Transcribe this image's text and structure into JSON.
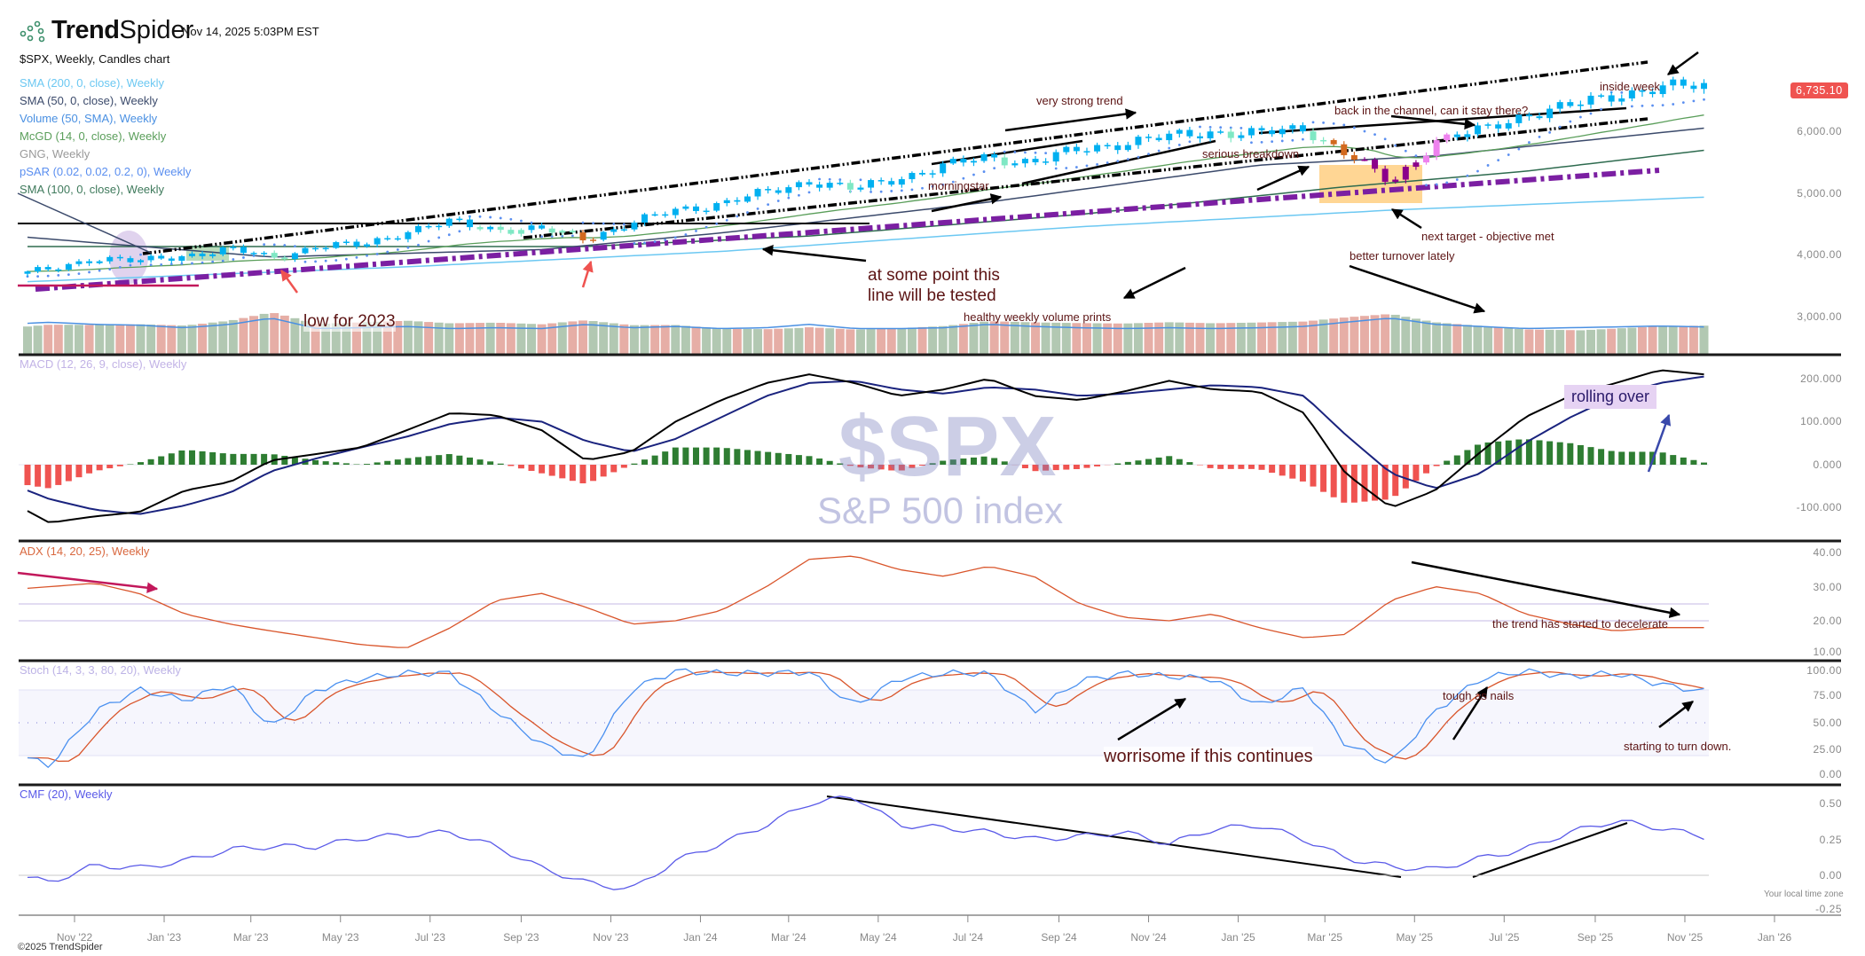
{
  "header": {
    "brand_bold": "Trend",
    "brand_light": "Spider",
    "timestamp": "Nov 14, 2025 5:03PM EST",
    "subtitle": "$SPX, Weekly, Candles chart"
  },
  "legend": [
    {
      "label": "SMA (200, 0, close), Weekly",
      "color": "#6cc8f2"
    },
    {
      "label": "SMA (50, 0, close), Weekly",
      "color": "#3b4a6b"
    },
    {
      "label": "Volume (50, SMA), Weekly",
      "color": "#4a90e2"
    },
    {
      "label": "McGD (14, 0, close), Weekly",
      "color": "#5a9e5a"
    },
    {
      "label": "GNG, Weekly",
      "color": "#9a9a9a"
    },
    {
      "label": "pSAR (0.02, 0.02, 0.2, 0), Weekly",
      "color": "#5b8ff0"
    },
    {
      "label": "SMA (100, 0, close), Weekly",
      "color": "#3f7a5c"
    }
  ],
  "panels": {
    "macd_label": "MACD (12, 26, 9, close), Weekly",
    "adx_label": "ADX (14, 20, 25), Weekly",
    "stoch_label": "Stoch (14, 3, 3, 80, 20), Weekly",
    "cmf_label": "CMF (20), Weekly"
  },
  "watermark": {
    "symbol": "$SPX",
    "name": "S&P 500 index"
  },
  "last_price": "6,735.10",
  "axes": {
    "price": [
      "6,000.00",
      "5,000.00",
      "4,000.00",
      "3,000.00"
    ],
    "macd": [
      "200.000",
      "100.000",
      "0.000",
      "-100.000"
    ],
    "adx": [
      "40.00",
      "30.00",
      "20.00",
      "10.00"
    ],
    "stoch": [
      "100.00",
      "75.00",
      "50.00",
      "25.00",
      "0.00"
    ],
    "cmf": [
      "0.50",
      "0.25",
      "0.00",
      "-0.25"
    ],
    "time": [
      "Nov '22",
      "Jan '23",
      "Mar '23",
      "May '23",
      "Jul '23",
      "Sep '23",
      "Nov '23",
      "Jan '24",
      "Mar '24",
      "May '24",
      "Jul '24",
      "Sep '24",
      "Nov '24",
      "Jan '25",
      "Mar '25",
      "May '25",
      "Jul '25",
      "Sep '25",
      "Nov '25",
      "Jan '26"
    ],
    "timezone_note": "Your local time zone"
  },
  "annotations": {
    "very_strong_trend": "very strong trend",
    "inside_week": "inside week",
    "back_in_channel": "back in the channel, can it stay there?",
    "serious_breakdown": "serious breakdown",
    "morningstar": "morningstar",
    "next_target": "next target - objective met",
    "better_turnover": "better turnover lately",
    "healthy_volume": "healthy weekly volume prints",
    "line_tested_1": "at some point this",
    "line_tested_2": "line will be tested",
    "low_2023": "low for 2023",
    "rolling_over": "rolling over",
    "trend_decelerate": "the trend has started to decelerate",
    "worrisome": "worrisome if this continues",
    "tough_as_nails": "tough as nails",
    "turn_down": "starting to turn down."
  },
  "footer": {
    "copyright": "©2025 TrendSpider"
  },
  "colors": {
    "up_strong": "#00b0f0",
    "up_weak": "#7fe8c4",
    "caution": "#d2691e",
    "down_weak": "#ee82ee",
    "down_strong": "#8b008b",
    "vol_up": "#b2c8b2",
    "vol_down": "#e6aea6",
    "hist_pos": "#2e7d32",
    "hist_neg": "#ef5350",
    "macd": "#000000",
    "signal": "#1a237e",
    "adx": "#d9552b",
    "stoch_k": "#4a90f0",
    "stoch_d": "#d9552b",
    "cmf": "#5a5ae8"
  },
  "chart_data": {
    "type": "line",
    "title": "$SPX, Weekly, Candles chart",
    "months": [
      "2022-09",
      "2022-10",
      "2022-11",
      "2022-12",
      "2023-01",
      "2023-02",
      "2023-03",
      "2023-04",
      "2023-05",
      "2023-06",
      "2023-07",
      "2023-08",
      "2023-09",
      "2023-10",
      "2023-11",
      "2023-12",
      "2024-01",
      "2024-02",
      "2024-03",
      "2024-04",
      "2024-05",
      "2024-06",
      "2024-07",
      "2024-08",
      "2024-09",
      "2024-10",
      "2024-11",
      "2024-12",
      "2025-01",
      "2025-02",
      "2025-03",
      "2025-04",
      "2025-05",
      "2025-06",
      "2025-07",
      "2025-08",
      "2025-09",
      "2025-10",
      "2025-11"
    ],
    "price_close": [
      3650,
      3750,
      3950,
      3880,
      3990,
      4080,
      3950,
      4130,
      4150,
      4380,
      4520,
      4420,
      4400,
      4270,
      4500,
      4720,
      4830,
      5000,
      5200,
      5050,
      5250,
      5430,
      5580,
      5500,
      5700,
      5820,
      5900,
      6000,
      5950,
      6050,
      5650,
      5150,
      5850,
      6000,
      6280,
      6400,
      6600,
      6700,
      6735
    ],
    "volume_relative": [
      0.7,
      0.75,
      0.7,
      0.68,
      0.62,
      0.7,
      0.85,
      0.6,
      0.62,
      0.65,
      0.6,
      0.62,
      0.6,
      0.7,
      0.62,
      0.65,
      0.6,
      0.62,
      0.7,
      0.6,
      0.6,
      0.62,
      0.7,
      0.65,
      0.62,
      0.6,
      0.62,
      0.6,
      0.62,
      0.65,
      0.75,
      0.85,
      0.7,
      0.65,
      0.6,
      0.62,
      0.64,
      0.66,
      0.64
    ],
    "macd": [
      -80,
      -135,
      -120,
      -110,
      -60,
      -40,
      10,
      25,
      40,
      80,
      120,
      115,
      80,
      10,
      30,
      100,
      150,
      190,
      210,
      190,
      160,
      175,
      200,
      160,
      150,
      170,
      195,
      175,
      170,
      120,
      -20,
      -100,
      -60,
      30,
      110,
      160,
      190,
      220,
      210
    ],
    "macd_signal": [
      -40,
      -80,
      -105,
      -115,
      -95,
      -65,
      -15,
      15,
      40,
      65,
      95,
      110,
      100,
      55,
      30,
      60,
      110,
      160,
      190,
      195,
      175,
      165,
      180,
      175,
      160,
      165,
      175,
      185,
      180,
      160,
      70,
      -20,
      -55,
      -20,
      50,
      110,
      160,
      190,
      205
    ],
    "adx": [
      29,
      30,
      31,
      28,
      22,
      19,
      17,
      15,
      13,
      12,
      18,
      26,
      28,
      24,
      19,
      20,
      23,
      30,
      38,
      39,
      35,
      33,
      36,
      33,
      25,
      21,
      20,
      22,
      18,
      15,
      16,
      26,
      30,
      28,
      22,
      19,
      17,
      18,
      18
    ],
    "stoch_k": [
      25,
      10,
      60,
      80,
      70,
      85,
      45,
      80,
      90,
      95,
      95,
      60,
      30,
      15,
      80,
      97,
      95,
      95,
      96,
      65,
      90,
      95,
      95,
      60,
      88,
      95,
      92,
      90,
      65,
      82,
      30,
      12,
      60,
      90,
      97,
      92,
      95,
      85,
      78
    ],
    "cmf": [
      0.02,
      -0.05,
      0.07,
      0.05,
      0.1,
      0.18,
      0.2,
      0.2,
      0.26,
      0.28,
      0.3,
      0.2,
      0.05,
      -0.05,
      -0.1,
      0.1,
      0.22,
      0.35,
      0.5,
      0.55,
      0.35,
      0.33,
      0.3,
      0.25,
      0.27,
      0.3,
      0.22,
      0.32,
      0.35,
      0.25,
      0.12,
      0.06,
      0.04,
      0.12,
      0.18,
      0.3,
      0.38,
      0.33,
      0.27
    ],
    "sma200": [
      [
        "2022-09-30",
        3560
      ],
      [
        "2023-06-15",
        3800
      ],
      [
        "2024-01-15",
        4050
      ],
      [
        "2024-09-15",
        4450
      ],
      [
        "2025-04-15",
        4720
      ],
      [
        "2025-11-14",
        4930
      ]
    ],
    "sma100": [
      [
        "2022-09-30",
        4130
      ],
      [
        "2023-10-15",
        4130
      ],
      [
        "2024-03-15",
        4300
      ],
      [
        "2024-09-15",
        4650
      ],
      [
        "2025-03-15",
        5100
      ],
      [
        "2025-07-15",
        5350
      ],
      [
        "2025-11-14",
        5690
      ]
    ],
    "sma50": [
      [
        "2022-09-30",
        4280
      ],
      [
        "2023-03-15",
        3960
      ],
      [
        "2023-09-15",
        4080
      ],
      [
        "2024-01-15",
        4350
      ],
      [
        "2024-07-15",
        4850
      ],
      [
        "2025-01-15",
        5450
      ],
      [
        "2025-05-15",
        5600
      ],
      [
        "2025-11-14",
        6050
      ]
    ],
    "ylim_price": [
      2800,
      6900
    ],
    "ylim_macd": [
      -150,
      250
    ],
    "ylim_adx": [
      10,
      42
    ],
    "ylim_stoch": [
      0,
      100
    ],
    "ylim_cmf": [
      -0.25,
      0.55
    ],
    "adx_levels": [
      20,
      25
    ],
    "stoch_levels": [
      20,
      50,
      80
    ],
    "first_week": "2022-09-30",
    "last_week": "2025-11-14",
    "grid": false
  }
}
